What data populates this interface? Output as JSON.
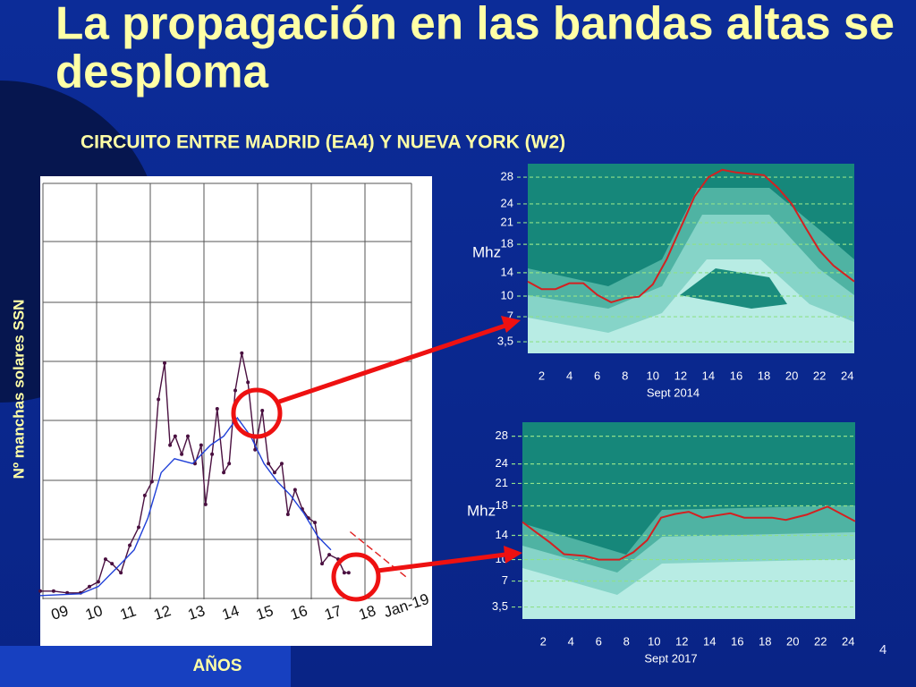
{
  "slide": {
    "title": [
      "La propagación en las bandas altas se",
      "desploma"
    ],
    "subtitle": "CIRCUITO ENTRE MADRID (EA4) Y NUEVA YORK (W2)",
    "page_number": "4"
  },
  "chart_data": [
    {
      "type": "line",
      "x_label": "AÑOS",
      "y_label": "Nº manchas solares SSN",
      "xlim": [
        2008.92,
        2020.39
      ],
      "ylim": [
        -15.5,
        140.6
      ],
      "xticks": [
        {
          "value": 2009.5,
          "label": "09"
        },
        {
          "value": 2010.5,
          "label": "10"
        },
        {
          "value": 2011.5,
          "label": "11"
        },
        {
          "value": 2012.5,
          "label": "12"
        },
        {
          "value": 2013.5,
          "label": "13"
        },
        {
          "value": 2014.5,
          "label": "14"
        },
        {
          "value": 2015.5,
          "label": "15"
        },
        {
          "value": 2016.5,
          "label": "16"
        },
        {
          "value": 2017.5,
          "label": "17"
        },
        {
          "value": 2018.5,
          "label": "18"
        },
        {
          "value": 2019,
          "label": "Jan-19"
        }
      ],
      "series": [
        {
          "color": "#4a1040",
          "markers": true,
          "x": [
            2008.92,
            2009.31,
            2009.71,
            2010.1,
            2010.36,
            2010.62,
            2010.83,
            2011.02,
            2011.28,
            2011.54,
            2011.8,
            2011.98,
            2012.19,
            2012.38,
            2012.56,
            2012.72,
            2012.87,
            2013.06,
            2013.24,
            2013.45,
            2013.63,
            2013.76,
            2013.95,
            2014.1,
            2014.29,
            2014.45,
            2014.63,
            2014.82,
            2015.0,
            2015.21,
            2015.42,
            2015.6,
            2015.78,
            2015.99,
            2016.17,
            2016.38,
            2016.59,
            2016.77,
            2016.96,
            2017.17,
            2017.38,
            2017.64,
            2017.82,
            2017.95
          ],
          "values": [
            2.7,
            2.7,
            2.1,
            2.1,
            4.2,
            5.8,
            13.3,
            11.8,
            8.8,
            17.9,
            23.9,
            34.5,
            39.1,
            66.4,
            78.5,
            51.2,
            54.2,
            48.2,
            54.2,
            45.1,
            51.2,
            31.5,
            48.2,
            63.3,
            42.1,
            45.1,
            69.4,
            81.8,
            72.1,
            49.7,
            62.7,
            45.1,
            42.1,
            45.1,
            28.2,
            36.4,
            30.0,
            27.0,
            25.5,
            11.8,
            14.8,
            13.3,
            8.8,
            8.8
          ]
        },
        {
          "color": "#2040d8",
          "markers": false,
          "x": [
            2008.92,
            2010.1,
            2010.62,
            2011.15,
            2011.67,
            2012.07,
            2012.46,
            2012.85,
            2013.38,
            2013.9,
            2014.29,
            2014.69,
            2015.08,
            2015.47,
            2015.86,
            2016.25,
            2016.64,
            2017.04,
            2017.43
          ],
          "values": [
            1.2,
            1.8,
            4.2,
            10.3,
            16.4,
            27.0,
            42.1,
            46.7,
            45.1,
            51.2,
            54.2,
            60.3,
            54.2,
            45.1,
            39.1,
            34.5,
            28.5,
            20.9,
            16.4
          ]
        },
        {
          "color": "#e02020",
          "markers": false,
          "dashed": true,
          "x": [
            2017.99,
            2019.64
          ],
          "values": [
            22.4,
            7.3
          ]
        }
      ]
    },
    {
      "type": "line",
      "y_scale": "piecewise",
      "x_label": "Sept 2014",
      "y_label": "Mhz",
      "xlim": [
        1,
        24.5
      ],
      "ylim": [
        1.9,
        30
      ],
      "xticks": [
        2,
        4,
        6,
        8,
        10,
        12,
        14,
        16,
        18,
        20,
        22,
        24
      ],
      "yticks": [
        {
          "value": 3.5,
          "label": "3,5"
        },
        7,
        10,
        14,
        18,
        21,
        24,
        28
      ],
      "series": [
        {
          "color": "#d42020",
          "x": [
            1,
            2,
            3,
            4,
            5,
            6,
            7,
            8,
            9,
            10,
            11,
            12,
            13,
            14,
            15,
            16,
            18,
            19,
            20,
            21,
            22,
            23,
            24.5
          ],
          "values": [
            12.5,
            11.2,
            11.2,
            12.2,
            12.2,
            10.2,
            9.1,
            9.7,
            9.9,
            12,
            15.9,
            20.3,
            25.1,
            28,
            29.1,
            28.7,
            28.3,
            26.4,
            24,
            20.3,
            17.1,
            15,
            12.5
          ]
        }
      ]
    },
    {
      "type": "line",
      "y_scale": "piecewise",
      "x_label": "Sept 2017",
      "y_label": "Mhz",
      "xlim": [
        0.5,
        24.5
      ],
      "ylim": [
        1.9,
        30
      ],
      "xticks": [
        2,
        4,
        6,
        8,
        10,
        12,
        14,
        16,
        18,
        20,
        22,
        24
      ],
      "yticks": [
        {
          "value": 3.5,
          "label": "3,5"
        },
        7,
        10,
        14,
        18,
        21,
        24,
        28
      ],
      "series": [
        {
          "color": "#d42020",
          "x": [
            0.5,
            1.5,
            2.5,
            3.5,
            5,
            6,
            7.5,
            8.5,
            9.5,
            10.5,
            11.5,
            12.5,
            13.5,
            14.5,
            15.5,
            16.5,
            17.5,
            18.5,
            19.5,
            21,
            22.5,
            24.5
          ],
          "values": [
            15.8,
            14.4,
            12.8,
            10.9,
            10.6,
            10,
            10,
            11.2,
            13.2,
            16.4,
            16.9,
            17.2,
            16.4,
            16.7,
            17,
            16.4,
            16.4,
            16.4,
            16.1,
            16.8,
            17.9,
            15.9
          ]
        }
      ]
    }
  ]
}
